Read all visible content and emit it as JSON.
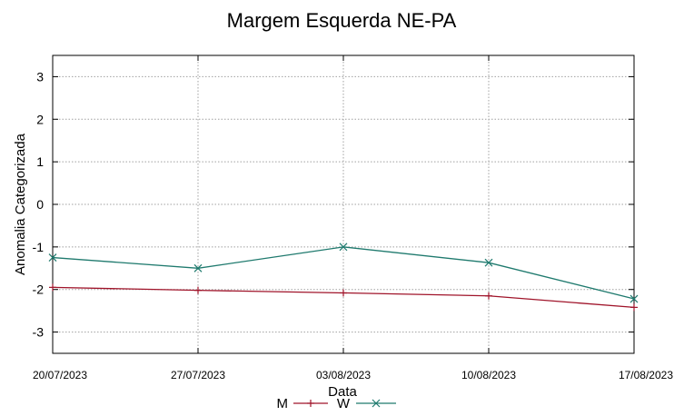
{
  "chart_data": {
    "type": "line",
    "title": "Margem Esquerda NE-PA",
    "xlabel": "Data",
    "ylabel": "Anomalia Categorizada",
    "categories": [
      "20/07/2023",
      "27/07/2023",
      "03/08/2023",
      "10/08/2023",
      "17/08/2023"
    ],
    "ylim": [
      -3.5,
      3.5
    ],
    "yticks": [
      -3,
      -2,
      -1,
      0,
      1,
      2,
      3
    ],
    "grid": true,
    "legend_position": "bottom",
    "series": [
      {
        "name": "M",
        "color": "#a0142a",
        "marker": "plus",
        "values": [
          -1.95,
          -2.02,
          -2.08,
          -2.15,
          -2.42
        ]
      },
      {
        "name": "W",
        "color": "#1f7a6e",
        "marker": "cross",
        "values": [
          -1.25,
          -1.5,
          -1.0,
          -1.37,
          -2.22
        ]
      }
    ]
  }
}
